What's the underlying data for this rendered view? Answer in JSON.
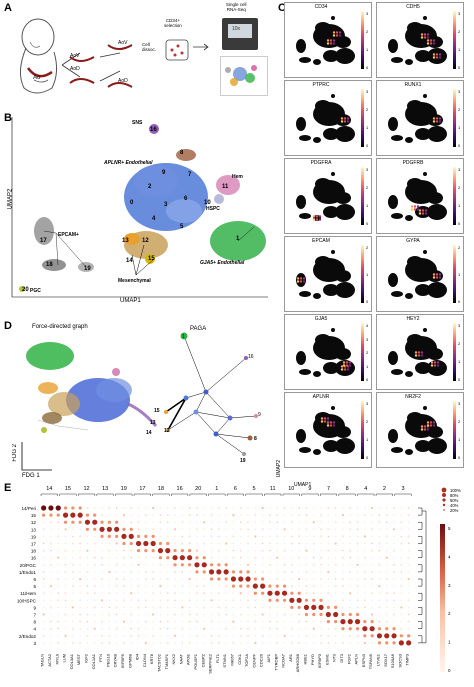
{
  "panels": {
    "a": {
      "label": "A",
      "aov": "AoV",
      "aod": "AoD",
      "aov2": "AoV",
      "aod2": "AoD",
      "ao": "Ao",
      "cell_dissoc": "Cell\ndissoc.",
      "cd34_sel": "CD34+\nselection",
      "scrnaseq": "Single cell\nRNA-Seq",
      "device_text": "10x"
    },
    "b": {
      "label": "B",
      "x_axis": "UMAP1",
      "y_axis": "UMAP2",
      "clusters": {
        "sns": "SNS",
        "aplnr": "APLNR+ Endothelial",
        "hem": "Hem",
        "hspc": "HSPC",
        "epcam": "EPCAM+",
        "mesenchymal": "Mesenchymal",
        "gja5": "GJA5+ Endothelial",
        "pgc": "PGC"
      },
      "numbers": [
        "16",
        "8",
        "7",
        "2",
        "3",
        "6",
        "0",
        "4",
        "10",
        "11",
        "5",
        "13",
        "12",
        "14",
        "15",
        "1",
        "17",
        "18",
        "19",
        "20",
        "9"
      ]
    },
    "c": {
      "label": "C",
      "genes": [
        "CD34",
        "CDH5",
        "PTPRC",
        "RUNX1",
        "PDGFRA",
        "PDGFRB",
        "EPCAM",
        "GYPA",
        "GJA5",
        "HEY2",
        "APLNR",
        "NR2F2"
      ],
      "x_axis": "UMAP1",
      "y_axis": "UMAP2"
    },
    "d": {
      "label": "D",
      "fdg_title": "Force-directed graph",
      "paga_title": "PAGA",
      "x_axis": "FDG 1",
      "y_axis": "FDG 2",
      "paga_nodes": [
        "1",
        "15",
        "13",
        "14",
        "12",
        "16",
        "8",
        "9",
        "19"
      ]
    },
    "e": {
      "label": "E",
      "top_numbers": [
        "14",
        "15",
        "12",
        "13",
        "19",
        "17",
        "18",
        "16",
        "20",
        "1",
        "6",
        "5",
        "11",
        "10",
        "9",
        "7",
        "8",
        "4",
        "2",
        "3"
      ],
      "rows": [
        "14/Peri",
        "15",
        "12",
        "13",
        "19",
        "17",
        "18",
        "16",
        "20/PGC",
        "1/Endo1",
        "6",
        "5",
        "11/Hem",
        "10/HSPC",
        "9",
        "7",
        "8",
        "4",
        "2/Endo2",
        "3"
      ],
      "genes": [
        "TAGLN",
        "ACTA2",
        "MYL9",
        "LUM",
        "COL3A1",
        "MEST",
        "IGF2",
        "COL1A1",
        "PTN",
        "PEG10",
        "CRYAB",
        "IGFBP5",
        "GPM6B",
        "ID4",
        "CLDN4",
        "KRT8",
        "TACSTD2",
        "TM4SF1",
        "NKX2",
        "NAAT",
        "APOE",
        "POU5F1",
        "CEBPZ",
        "SERPINE2",
        "FLT1",
        "STMN1",
        "MKI67",
        "CDK1",
        "TOP2A",
        "CENPF",
        "CDC20",
        "AIF1",
        "TYROBP",
        "NCOA7",
        "AR1",
        "ARHGDIB",
        "HBE1",
        "PHYD",
        "IGFBP3",
        "ESM1",
        "NTS",
        "DIT3",
        "FGF2",
        "APLN",
        "ESPN3",
        "TSPAN5",
        "LYVE1",
        "SOX17",
        "S100A6",
        "SOCS3",
        "TIMP3"
      ],
      "size_legend": [
        "100%",
        "80%",
        "60%",
        "40%",
        "20%"
      ],
      "colorbar_ticks": [
        "5",
        "4",
        "3",
        "2",
        "1",
        "0"
      ]
    }
  }
}
